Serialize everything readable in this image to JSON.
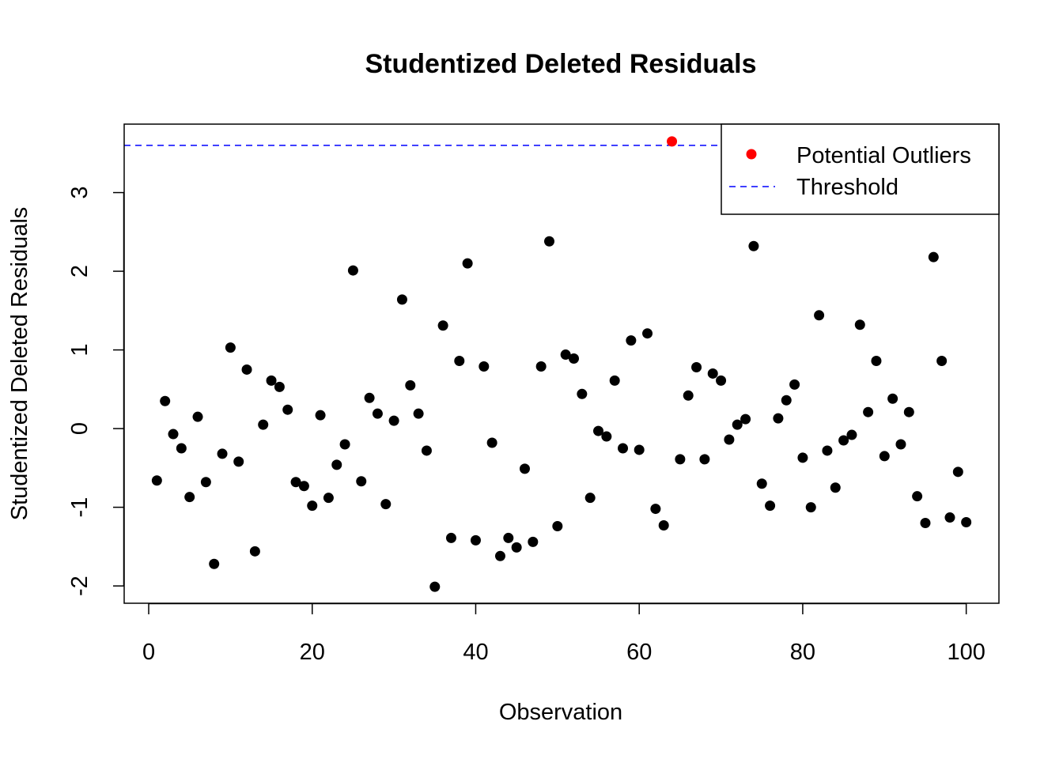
{
  "chart_data": {
    "type": "scatter",
    "title": "Studentized Deleted Residuals",
    "xlabel": "Observation",
    "ylabel": "Studentized Deleted Residuals",
    "xlim": [
      -3,
      104
    ],
    "ylim": [
      -2.22,
      3.87
    ],
    "x_ticks": [
      0,
      20,
      40,
      60,
      80,
      100
    ],
    "y_ticks": [
      -2,
      -1,
      0,
      1,
      2,
      3
    ],
    "grid": false,
    "legend_position": "top-right",
    "threshold": 3.6,
    "colors": {
      "points": "#000000",
      "outliers": "#ff0000",
      "threshold": "#0000ff"
    },
    "legend": [
      {
        "label": "Potential Outliers",
        "kind": "point",
        "color": "#ff0000"
      },
      {
        "label": "Threshold",
        "kind": "dashed-line",
        "color": "#0000ff"
      }
    ],
    "series": [
      {
        "points": [
          [
            1,
            -0.66
          ],
          [
            2,
            0.35
          ],
          [
            3,
            -0.07
          ],
          [
            4,
            -0.25
          ],
          [
            5,
            -0.87
          ],
          [
            6,
            0.15
          ],
          [
            7,
            -0.68
          ],
          [
            8,
            -1.72
          ],
          [
            9,
            -0.32
          ],
          [
            10,
            1.03
          ],
          [
            11,
            -0.42
          ],
          [
            12,
            0.75
          ],
          [
            13,
            -1.56
          ],
          [
            14,
            0.05
          ],
          [
            15,
            0.61
          ],
          [
            16,
            0.53
          ],
          [
            17,
            0.24
          ],
          [
            18,
            -0.68
          ],
          [
            19,
            -0.73
          ],
          [
            20,
            -0.98
          ],
          [
            21,
            0.17
          ],
          [
            22,
            -0.88
          ],
          [
            23,
            -0.46
          ],
          [
            24,
            -0.2
          ],
          [
            25,
            2.01
          ],
          [
            26,
            -0.67
          ],
          [
            27,
            0.39
          ],
          [
            28,
            0.19
          ],
          [
            29,
            -0.96
          ],
          [
            30,
            0.1
          ],
          [
            31,
            1.64
          ],
          [
            32,
            0.55
          ],
          [
            33,
            0.19
          ],
          [
            34,
            -0.28
          ],
          [
            35,
            -2.01
          ],
          [
            36,
            1.31
          ],
          [
            37,
            -1.39
          ],
          [
            38,
            0.86
          ],
          [
            39,
            2.1
          ],
          [
            40,
            -1.42
          ],
          [
            41,
            0.79
          ],
          [
            42,
            -0.18
          ],
          [
            43,
            -1.62
          ],
          [
            44,
            -1.39
          ],
          [
            45,
            -1.51
          ],
          [
            46,
            -0.51
          ],
          [
            47,
            -1.44
          ],
          [
            48,
            0.79
          ],
          [
            49,
            2.38
          ],
          [
            50,
            -1.24
          ],
          [
            51,
            0.94
          ],
          [
            52,
            0.89
          ],
          [
            53,
            0.44
          ],
          [
            54,
            -0.88
          ],
          [
            55,
            -0.03
          ],
          [
            56,
            -0.1
          ],
          [
            57,
            0.61
          ],
          [
            58,
            -0.25
          ],
          [
            59,
            1.12
          ],
          [
            60,
            -0.27
          ],
          [
            61,
            1.21
          ],
          [
            62,
            -1.02
          ],
          [
            63,
            -1.23
          ],
          [
            65,
            -0.39
          ],
          [
            66,
            0.42
          ],
          [
            67,
            0.78
          ],
          [
            68,
            -0.39
          ],
          [
            69,
            0.7
          ],
          [
            70,
            0.61
          ],
          [
            71,
            -0.14
          ],
          [
            72,
            0.05
          ],
          [
            73,
            0.12
          ],
          [
            74,
            2.32
          ],
          [
            75,
            -0.7
          ],
          [
            76,
            -0.98
          ],
          [
            77,
            0.13
          ],
          [
            78,
            0.36
          ],
          [
            79,
            0.56
          ],
          [
            80,
            -0.37
          ],
          [
            81,
            -1.0
          ],
          [
            82,
            1.44
          ],
          [
            83,
            -0.28
          ],
          [
            84,
            -0.75
          ],
          [
            85,
            -0.15
          ],
          [
            86,
            -0.08
          ],
          [
            87,
            1.32
          ],
          [
            88,
            0.21
          ],
          [
            89,
            0.86
          ],
          [
            90,
            -0.35
          ],
          [
            91,
            0.38
          ],
          [
            92,
            -0.2
          ],
          [
            93,
            0.21
          ],
          [
            94,
            -0.86
          ],
          [
            95,
            -1.2
          ],
          [
            96,
            2.18
          ],
          [
            97,
            0.86
          ],
          [
            98,
            -1.13
          ],
          [
            99,
            -0.55
          ],
          [
            100,
            -1.19
          ]
        ]
      },
      {
        "points": [
          [
            64,
            3.65
          ]
        ]
      }
    ]
  }
}
